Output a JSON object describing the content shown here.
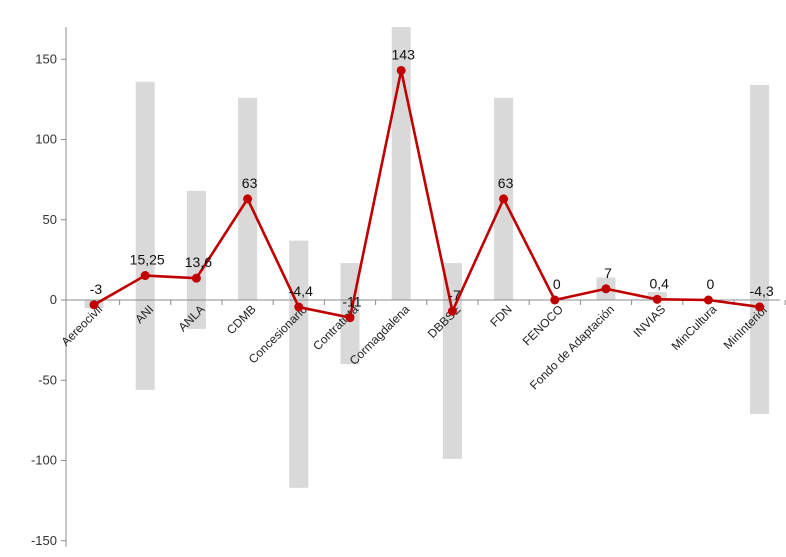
{
  "chart_data": {
    "type": "bar+line",
    "title": "",
    "xlabel": "",
    "ylabel": "",
    "ylim": [
      -150,
      170
    ],
    "yticks": [
      150,
      100,
      50,
      0,
      -50,
      -100,
      -150
    ],
    "grid": false,
    "categories": [
      "Aereocivil",
      "ANI",
      "ANLA",
      "CDMB",
      "Concesionario",
      "Contratista",
      "Cormagdalena",
      "DBBSE",
      "FDN",
      "FENOCO",
      "Fondo de Adaptación",
      "INVIAS",
      "MinCultura",
      "MinInterior"
    ],
    "range_bars": [
      {
        "low": -5,
        "high": 0
      },
      {
        "low": -56,
        "high": 136
      },
      {
        "low": -18,
        "high": 68
      },
      {
        "low": 0,
        "high": 126
      },
      {
        "low": -117,
        "high": 37
      },
      {
        "low": -40,
        "high": 23
      },
      {
        "low": 0,
        "high": 170
      },
      {
        "low": -99,
        "high": 23
      },
      {
        "low": 0,
        "high": 126
      },
      {
        "low": 0,
        "high": 0
      },
      {
        "low": 0,
        "high": 14
      },
      {
        "low": 0,
        "high": 5
      },
      {
        "low": 0,
        "high": 0
      },
      {
        "low": -71,
        "high": 134
      }
    ],
    "line_values": [
      -3,
      15.25,
      13.6,
      63,
      -4.4,
      -11,
      143,
      -7,
      63,
      0,
      7,
      0.4,
      0,
      -4.3
    ],
    "line_labels": [
      "-3",
      "15,25",
      "13,6",
      "63",
      "-4,4",
      "-11",
      "143",
      "-7",
      "63",
      "0",
      "7",
      "0,4",
      "0",
      "-4,3"
    ],
    "colors": {
      "line": "#c00000",
      "bars": "#d9d9d9",
      "axis": "#8c8c8c"
    }
  }
}
